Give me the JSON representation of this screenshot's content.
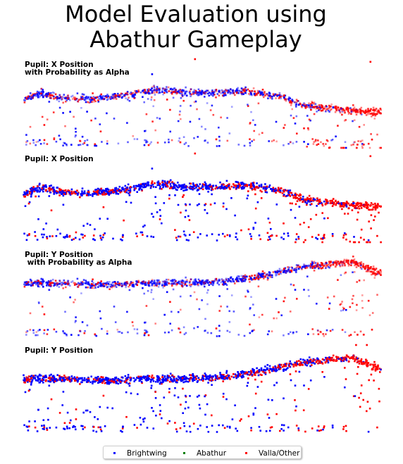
{
  "title": "Model Evaluation using\nAbathur Gameplay",
  "chart_data": [
    {
      "type": "scatter",
      "label": "Pupil: X Position\nwith Probability as Alpha",
      "alpha_by_probability": true,
      "axes_visible": false,
      "grid": false,
      "x_range": [
        0,
        1
      ],
      "y_range": [
        0,
        1
      ],
      "profile": [
        {
          "x": 0.0,
          "y": 0.55
        },
        {
          "x": 0.05,
          "y": 0.62
        },
        {
          "x": 0.1,
          "y": 0.57
        },
        {
          "x": 0.18,
          "y": 0.55
        },
        {
          "x": 0.25,
          "y": 0.58
        },
        {
          "x": 0.3,
          "y": 0.6
        },
        {
          "x": 0.38,
          "y": 0.66
        },
        {
          "x": 0.45,
          "y": 0.62
        },
        {
          "x": 0.52,
          "y": 0.62
        },
        {
          "x": 0.6,
          "y": 0.64
        },
        {
          "x": 0.66,
          "y": 0.62
        },
        {
          "x": 0.72,
          "y": 0.58
        },
        {
          "x": 0.78,
          "y": 0.48
        },
        {
          "x": 0.85,
          "y": 0.45
        },
        {
          "x": 0.92,
          "y": 0.42
        },
        {
          "x": 1.0,
          "y": 0.4
        }
      ],
      "red_fraction": [
        0.35,
        0.3,
        0.35,
        0.3,
        0.25,
        0.4,
        0.55,
        0.85,
        0.97
      ],
      "upper_outliers": [
        {
          "x": 0.97,
          "y": 0.97,
          "series": "Valla/Other"
        },
        {
          "x": 0.48,
          "y": 1.0,
          "series": "Valla/Other"
        },
        {
          "x": 0.36,
          "y": 0.83,
          "series": "Brightwing"
        }
      ]
    },
    {
      "type": "scatter",
      "label": "Pupil: X Position",
      "alpha_by_probability": false,
      "axes_visible": false,
      "grid": false,
      "x_range": [
        0,
        1
      ],
      "y_range": [
        0,
        1
      ],
      "profile": [
        {
          "x": 0.0,
          "y": 0.55
        },
        {
          "x": 0.05,
          "y": 0.62
        },
        {
          "x": 0.1,
          "y": 0.57
        },
        {
          "x": 0.18,
          "y": 0.55
        },
        {
          "x": 0.25,
          "y": 0.58
        },
        {
          "x": 0.3,
          "y": 0.6
        },
        {
          "x": 0.38,
          "y": 0.66
        },
        {
          "x": 0.45,
          "y": 0.62
        },
        {
          "x": 0.52,
          "y": 0.62
        },
        {
          "x": 0.6,
          "y": 0.64
        },
        {
          "x": 0.66,
          "y": 0.62
        },
        {
          "x": 0.72,
          "y": 0.58
        },
        {
          "x": 0.78,
          "y": 0.48
        },
        {
          "x": 0.85,
          "y": 0.45
        },
        {
          "x": 0.92,
          "y": 0.42
        },
        {
          "x": 1.0,
          "y": 0.4
        }
      ],
      "red_fraction": [
        0.35,
        0.3,
        0.35,
        0.3,
        0.25,
        0.4,
        0.55,
        0.85,
        0.97
      ],
      "upper_outliers": [
        {
          "x": 0.97,
          "y": 0.97,
          "series": "Valla/Other"
        },
        {
          "x": 0.48,
          "y": 1.0,
          "series": "Valla/Other"
        },
        {
          "x": 0.36,
          "y": 0.83,
          "series": "Brightwing"
        }
      ]
    },
    {
      "type": "scatter",
      "label": "Pupil: Y Position\n with Probability as Alpha",
      "alpha_by_probability": true,
      "axes_visible": false,
      "grid": false,
      "x_range": [
        0,
        1
      ],
      "y_range": [
        0,
        1
      ],
      "profile": [
        {
          "x": 0.0,
          "y": 0.62
        },
        {
          "x": 0.1,
          "y": 0.62
        },
        {
          "x": 0.2,
          "y": 0.6
        },
        {
          "x": 0.3,
          "y": 0.61
        },
        {
          "x": 0.4,
          "y": 0.62
        },
        {
          "x": 0.5,
          "y": 0.62
        },
        {
          "x": 0.6,
          "y": 0.66
        },
        {
          "x": 0.7,
          "y": 0.73
        },
        {
          "x": 0.78,
          "y": 0.8
        },
        {
          "x": 0.85,
          "y": 0.83
        },
        {
          "x": 0.92,
          "y": 0.86
        },
        {
          "x": 1.0,
          "y": 0.72
        }
      ],
      "red_fraction": [
        0.3,
        0.25,
        0.3,
        0.25,
        0.2,
        0.3,
        0.45,
        0.75,
        0.95
      ],
      "upper_outliers": []
    },
    {
      "type": "scatter",
      "label": "Pupil: Y Position",
      "alpha_by_probability": false,
      "axes_visible": false,
      "grid": false,
      "x_range": [
        0,
        1
      ],
      "y_range": [
        0,
        1
      ],
      "profile": [
        {
          "x": 0.0,
          "y": 0.62
        },
        {
          "x": 0.1,
          "y": 0.62
        },
        {
          "x": 0.2,
          "y": 0.6
        },
        {
          "x": 0.3,
          "y": 0.61
        },
        {
          "x": 0.4,
          "y": 0.62
        },
        {
          "x": 0.5,
          "y": 0.62
        },
        {
          "x": 0.6,
          "y": 0.66
        },
        {
          "x": 0.7,
          "y": 0.73
        },
        {
          "x": 0.78,
          "y": 0.8
        },
        {
          "x": 0.85,
          "y": 0.83
        },
        {
          "x": 0.92,
          "y": 0.86
        },
        {
          "x": 1.0,
          "y": 0.72
        }
      ],
      "red_fraction": [
        0.3,
        0.25,
        0.3,
        0.25,
        0.2,
        0.3,
        0.45,
        0.75,
        0.95
      ],
      "upper_outliers": [
        {
          "x": 0.93,
          "y": 1.0,
          "series": "Valla/Other"
        },
        {
          "x": 0.96,
          "y": 1.0,
          "series": "Valla/Other"
        }
      ]
    }
  ],
  "legend": {
    "placement": "bottom-center",
    "items": [
      {
        "label": "Brightwing",
        "color": "#0000ff"
      },
      {
        "label": "Abathur",
        "color": "#008000"
      },
      {
        "label": "Valla/Other",
        "color": "#ff0000"
      }
    ]
  }
}
